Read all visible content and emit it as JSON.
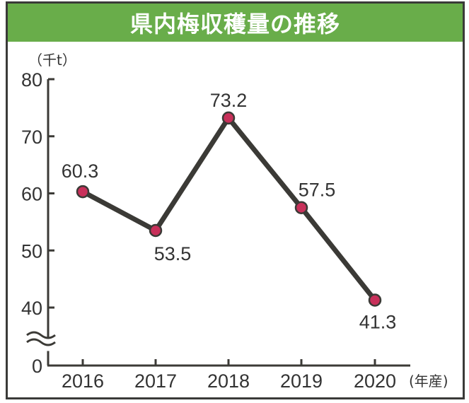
{
  "chart_data": {
    "type": "line",
    "title": "県内梅収穫量の推移",
    "ylabel": "（千t）",
    "xlabel": "(年産)",
    "categories": [
      "2016",
      "2017",
      "2018",
      "2019",
      "2020"
    ],
    "series": [
      {
        "values": [
          60.3,
          53.5,
          73.2,
          57.5,
          41.3
        ]
      }
    ],
    "data_labels": [
      "60.3",
      "53.5",
      "73.2",
      "57.5",
      "41.3"
    ],
    "yticks": [
      "0",
      "40",
      "50",
      "60",
      "70",
      "80"
    ],
    "ylim": [
      0,
      80
    ],
    "axis_break": "between 0 and 40",
    "grid": false,
    "legend": "none",
    "colors": {
      "line": "#3b3a36",
      "marker": "#c8305a",
      "header": "#69ad4a"
    }
  }
}
